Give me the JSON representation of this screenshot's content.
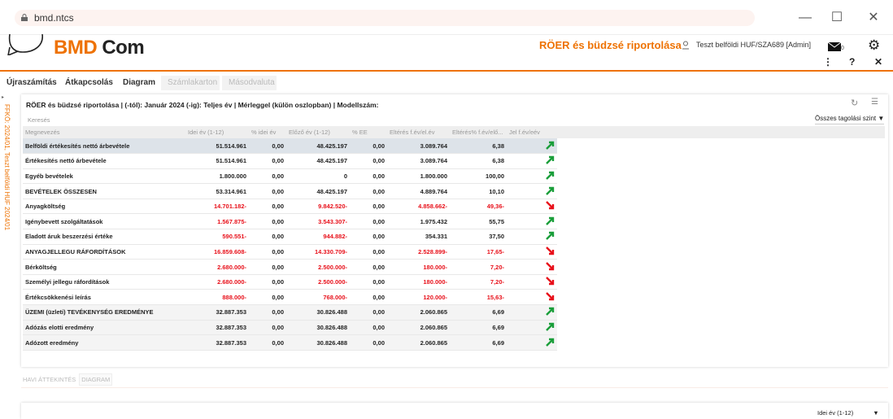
{
  "browser": {
    "url": "bmd.ntcs"
  },
  "header": {
    "logo": "BMD Com",
    "logo_part1": "BMD",
    "logo_part2": "Com",
    "title": "RÖER és büdzsé riportolása",
    "user": "Teszt belföldi HUF/SZA689 [Admin]",
    "mail_count": "0"
  },
  "toolbar": [
    "Újraszámítás",
    "Átkapcsolás",
    "Diagram",
    "Számlakarton",
    "Másodvaluta"
  ],
  "side_label": "FFKÖ: 2024/01, Teszt belföldi HUF 2024/01",
  "report": {
    "title": "RÖER és büdzsé riportolása | (-tól): Január 2024 (-ig): Teljes év | Mérleggel (külön oszlopban) | Modellszám:",
    "search_placeholder": "Keresés",
    "level_select": "Összes tagolási szint",
    "columns": [
      "Megnevezés",
      "Idei év (1-12)",
      "% idei év",
      "Előző év (1-12)",
      "% EE",
      "Eltérés f.év/el.év",
      "Eltérés% f.év/elő...",
      "Jel f.év/eév"
    ],
    "rows": [
      [
        "Belföldi értékesítés nettó árbevétele",
        "51.514.961",
        "0,00",
        "48.425.197",
        "0,00",
        "3.089.764",
        "6,38",
        "up"
      ],
      [
        "Értékesítés nettó árbevétele",
        "51.514.961",
        "0,00",
        "48.425.197",
        "0,00",
        "3.089.764",
        "6,38",
        "up"
      ],
      [
        "Egyéb bevételek",
        "1.800.000",
        "0,00",
        "0",
        "0,00",
        "1.800.000",
        "100,00",
        "up"
      ],
      [
        "BEVÉTELEK ÖSSZESEN",
        "53.314.961",
        "0,00",
        "48.425.197",
        "0,00",
        "4.889.764",
        "10,10",
        "up"
      ],
      [
        "Anyagköltség",
        "14.701.182-",
        "0,00",
        "9.842.520-",
        "0,00",
        "4.858.662-",
        "49,36-",
        "down"
      ],
      [
        "Igénybevett szolgáltatások",
        "1.567.875-",
        "0,00",
        "3.543.307-",
        "0,00",
        "1.975.432",
        "55,75",
        "up"
      ],
      [
        "Eladott áruk beszerzési értéke",
        "590.551-",
        "0,00",
        "944.882-",
        "0,00",
        "354.331",
        "37,50",
        "up"
      ],
      [
        "ANYAGJELLEGU RÁFORDÍTÁSOK",
        "16.859.608-",
        "0,00",
        "14.330.709-",
        "0,00",
        "2.528.899-",
        "17,65-",
        "down"
      ],
      [
        "Bérköltség",
        "2.680.000-",
        "0,00",
        "2.500.000-",
        "0,00",
        "180.000-",
        "7,20-",
        "down"
      ],
      [
        "Személyi jellegu ráfordítások",
        "2.680.000-",
        "0,00",
        "2.500.000-",
        "0,00",
        "180.000-",
        "7,20-",
        "down"
      ],
      [
        "Értékcsökkenési leírás",
        "888.000-",
        "0,00",
        "768.000-",
        "0,00",
        "120.000-",
        "15,63-",
        "down"
      ],
      [
        "ÜZEMI (üzleti) TEVÉKENYSÉG EREDMÉNYE",
        "32.887.353",
        "0,00",
        "30.826.488",
        "0,00",
        "2.060.865",
        "6,69",
        "up"
      ],
      [
        "Adózás elotti eredmény",
        "32.887.353",
        "0,00",
        "30.826.488",
        "0,00",
        "2.060.865",
        "6,69",
        "up"
      ],
      [
        "Adózott eredmény",
        "32.887.353",
        "0,00",
        "30.826.488",
        "0,00",
        "2.060.865",
        "6,69",
        "up"
      ]
    ]
  },
  "bottom_tabs": [
    "HAVI ÁTTEKINTÉS",
    "DIAGRAM"
  ],
  "bottom_select": "Idei év (1-12)"
}
